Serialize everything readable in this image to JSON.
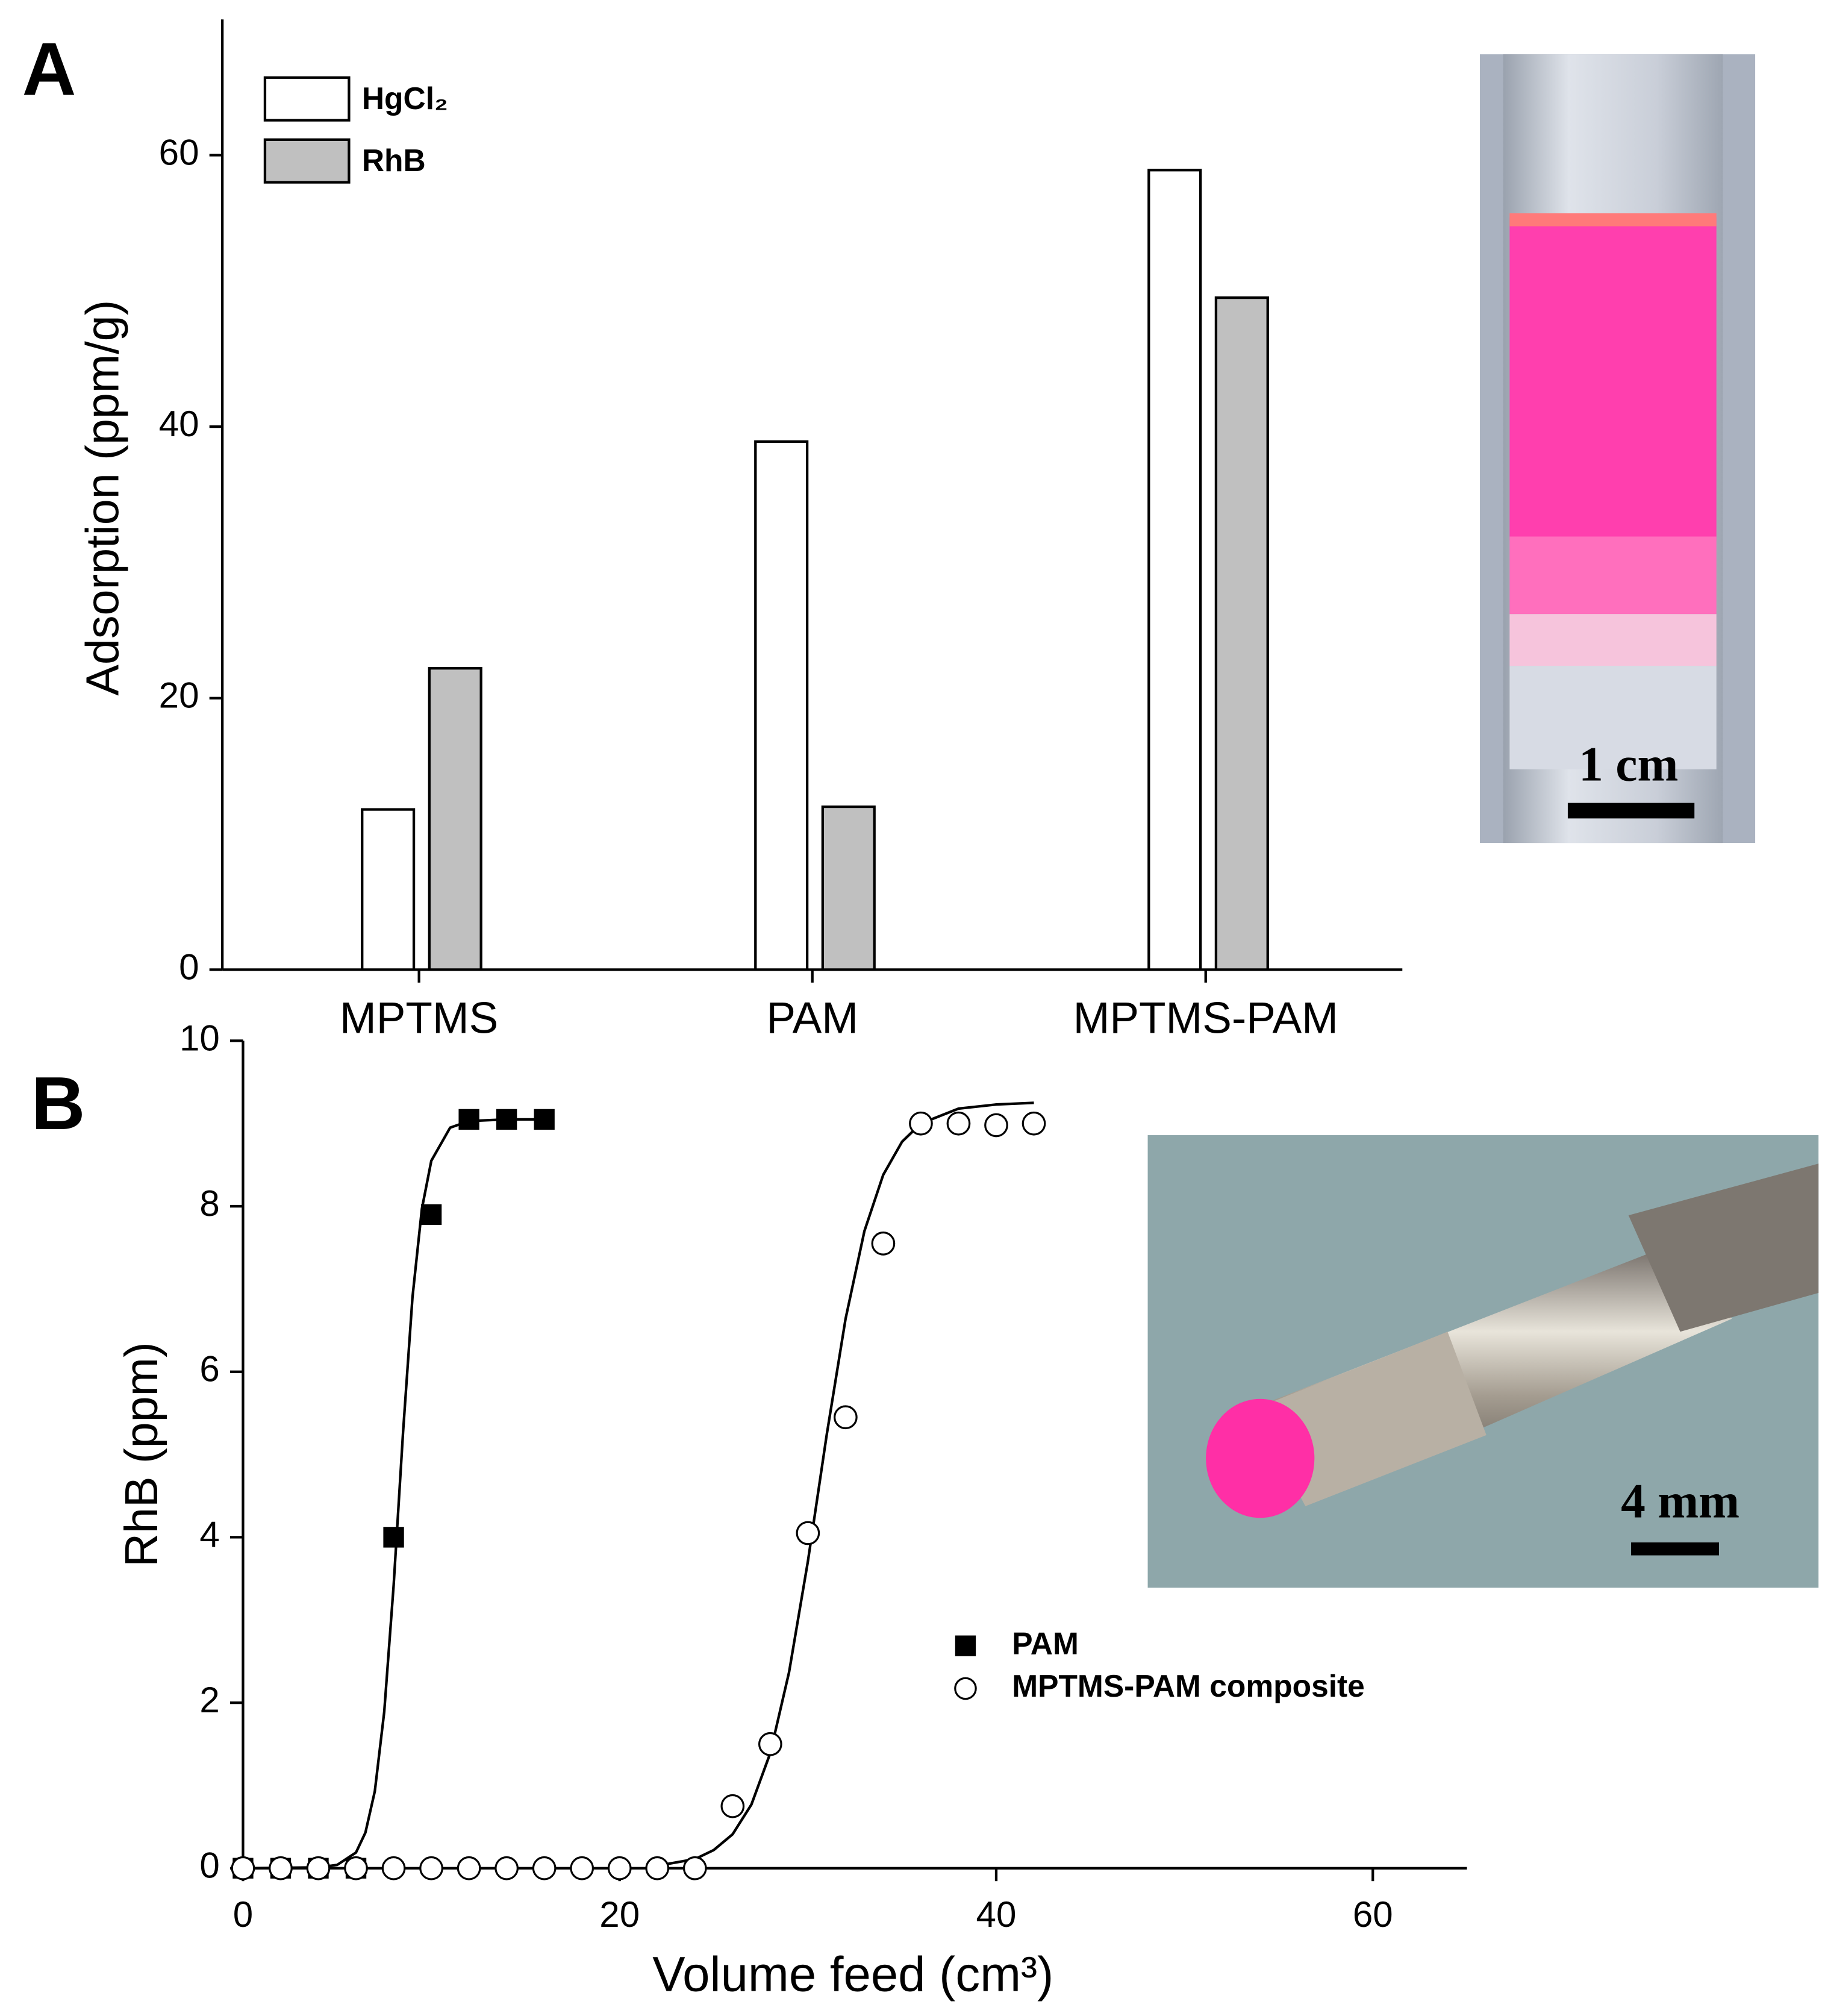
{
  "chart_data": [
    {
      "type": "bar",
      "label": "A",
      "ylabel": "Adsorption (ppm/g)",
      "categories": [
        "MPTMS",
        "PAM",
        "MPTMS-PAM"
      ],
      "series": [
        {
          "name": "HgCl₂",
          "color": "#ffffff",
          "values": [
            11.8,
            38.9,
            58.9
          ]
        },
        {
          "name": "RhB",
          "color": "#c0c0c0",
          "values": [
            22.2,
            12.0,
            49.5
          ]
        }
      ],
      "ylim": [
        0,
        70
      ],
      "yticks": [
        0,
        20,
        40,
        60
      ],
      "legend": "upper left",
      "photo_label": "1 cm"
    },
    {
      "type": "scatter",
      "label": "B",
      "xlabel": "Volume feed (cm³)",
      "ylabel": "RhB (ppm)",
      "series": [
        {
          "name": "PAM",
          "color": "#000000",
          "marker": "square",
          "x": [
            0,
            2,
            4,
            6,
            8,
            10,
            12,
            14,
            16
          ],
          "values": [
            0,
            0,
            0,
            0,
            4.0,
            7.9,
            9.05,
            9.05,
            9.05
          ]
        },
        {
          "name": "MPTMS-PAM composite",
          "color": "#000000",
          "marker": "open-circle",
          "x": [
            0,
            2,
            4,
            6,
            8,
            10,
            12,
            14,
            16,
            18,
            20,
            22,
            24,
            26,
            28,
            30,
            32,
            34,
            36,
            38,
            40,
            42
          ],
          "values": [
            0,
            0,
            0,
            0,
            0,
            0,
            0,
            0,
            0,
            0,
            0,
            0,
            0,
            0.75,
            1.5,
            4.05,
            5.45,
            7.55,
            9.0,
            9.0,
            8.98,
            9.0
          ]
        }
      ],
      "fit_lines": [
        {
          "color": "#000000",
          "x": [
            0,
            4,
            5,
            6,
            6.5,
            7,
            7.5,
            8,
            8.5,
            9,
            9.5,
            10,
            11,
            12,
            14,
            16
          ],
          "values": [
            0,
            0.01,
            0.04,
            0.19,
            0.43,
            0.93,
            1.89,
            3.42,
            5.27,
            6.9,
            7.97,
            8.55,
            8.95,
            9.03,
            9.05,
            9.05
          ]
        },
        {
          "color": "#000000",
          "x": [
            22,
            24,
            25,
            26,
            27,
            28,
            29,
            30,
            31,
            32,
            33,
            34,
            35,
            36,
            38,
            40,
            42
          ],
          "values": [
            0.03,
            0.11,
            0.22,
            0.41,
            0.77,
            1.39,
            2.37,
            3.71,
            5.24,
            6.64,
            7.7,
            8.38,
            8.78,
            9.0,
            9.18,
            9.23,
            9.25
          ]
        }
      ],
      "xlim": [
        0,
        65
      ],
      "xticks": [
        0,
        20,
        40,
        60
      ],
      "ylim": [
        0,
        10
      ],
      "yticks": [
        0,
        2,
        4,
        6,
        8,
        10
      ],
      "legend": "lower right",
      "photo_label": "4 mm"
    }
  ]
}
